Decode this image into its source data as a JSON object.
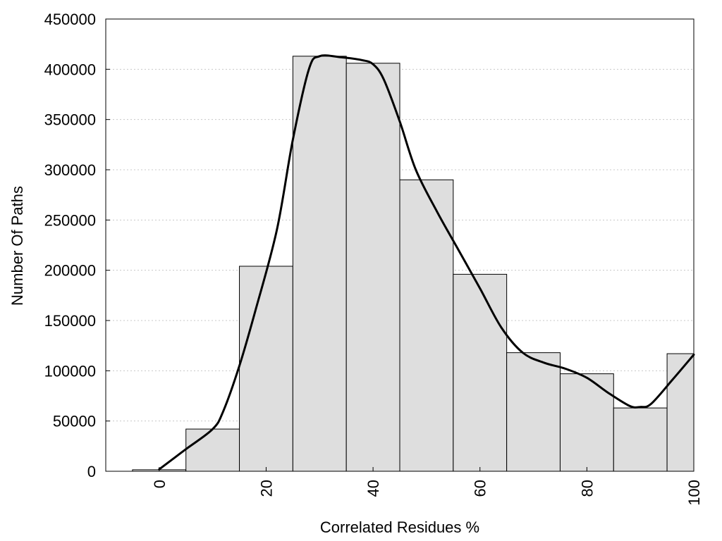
{
  "chart_data": {
    "type": "bar",
    "title": "",
    "xlabel": "Correlated Residues %",
    "ylabel": "Number Of Paths",
    "xlim": [
      -10,
      100
    ],
    "ylim": [
      0,
      450000
    ],
    "grid": true,
    "x_ticks": [
      0,
      20,
      40,
      60,
      80,
      100
    ],
    "y_ticks": [
      0,
      50000,
      100000,
      150000,
      200000,
      250000,
      300000,
      350000,
      400000,
      450000
    ],
    "bin_width": 10,
    "bins": [
      {
        "center": 0,
        "value": 1500
      },
      {
        "center": 10,
        "value": 42000
      },
      {
        "center": 20,
        "value": 204000
      },
      {
        "center": 30,
        "value": 413000
      },
      {
        "center": 40,
        "value": 406000
      },
      {
        "center": 50,
        "value": 290000
      },
      {
        "center": 60,
        "value": 196000
      },
      {
        "center": 70,
        "value": 118000
      },
      {
        "center": 80,
        "value": 97000
      },
      {
        "center": 90,
        "value": 63000
      },
      {
        "center": 100,
        "value": 117000
      }
    ],
    "curve": {
      "x": [
        0,
        5,
        10,
        12,
        15,
        18,
        22,
        25,
        28,
        30,
        34,
        38,
        40,
        42,
        45,
        48,
        52,
        56,
        60,
        64,
        68,
        72,
        76,
        80,
        84,
        88,
        90,
        92,
        96,
        100
      ],
      "y": [
        2000,
        22000,
        42000,
        60000,
        105000,
        160000,
        240000,
        330000,
        400000,
        413000,
        412000,
        409000,
        405000,
        390000,
        348000,
        300000,
        258000,
        220000,
        182000,
        143000,
        118000,
        108000,
        102000,
        93000,
        78000,
        65000,
        64000,
        67000,
        91000,
        116000
      ]
    },
    "colors": {
      "bar_fill": "#dedede",
      "bar_edge": "#000000",
      "curve": "#000000",
      "grid": "#c8c8c8"
    }
  }
}
